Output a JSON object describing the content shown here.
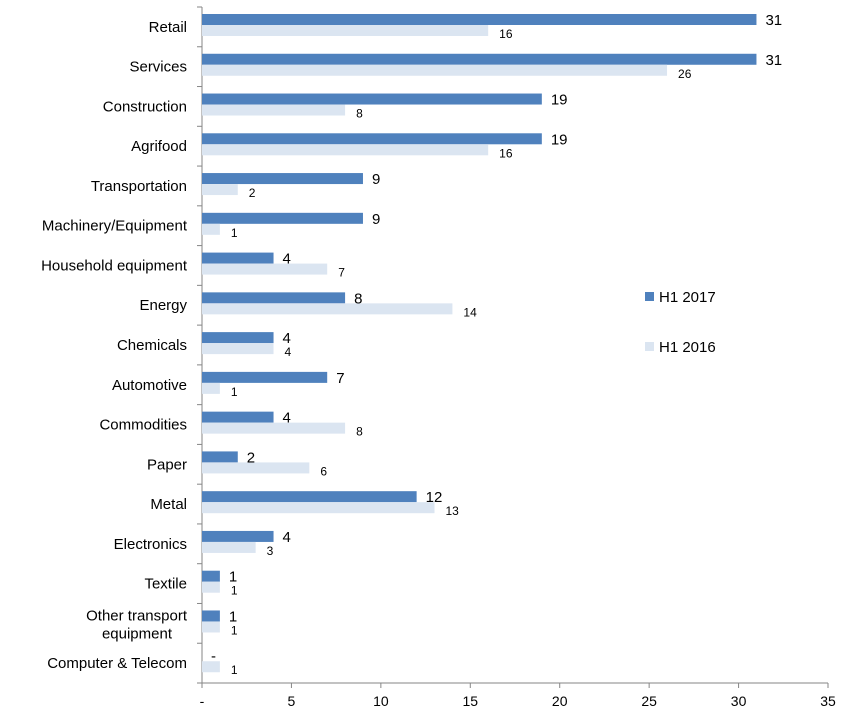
{
  "chart_data": {
    "type": "bar",
    "orientation": "horizontal",
    "categories": [
      "Retail",
      "Services",
      "Construction",
      "Agrifood",
      "Transportation",
      "Machinery/Equipment",
      "Household equipment",
      "Energy",
      "Chemicals",
      "Automotive",
      "Commodities",
      "Paper",
      "Metal",
      "Electronics",
      "Textile",
      "Other transport equipment",
      "Computer & Telecom"
    ],
    "series": [
      {
        "name": "H1 2017",
        "color": "#4f81bd",
        "values": [
          31,
          31,
          19,
          19,
          9,
          9,
          4,
          8,
          4,
          7,
          4,
          2,
          12,
          4,
          1,
          1,
          0
        ],
        "labels": [
          "31",
          "31",
          "19",
          "19",
          "9",
          "9",
          "4",
          "8",
          "4",
          "7",
          "4",
          "2",
          "12",
          "4",
          "1",
          "1",
          "-"
        ]
      },
      {
        "name": "H1 2016",
        "color": "#dbe5f1",
        "values": [
          16,
          26,
          8,
          16,
          2,
          1,
          7,
          14,
          4,
          1,
          8,
          6,
          13,
          3,
          1,
          1,
          1
        ],
        "labels": [
          "16",
          "26",
          "8",
          "16",
          "2",
          "1",
          "7",
          "14",
          "4",
          "1",
          "8",
          "6",
          "13",
          "3",
          "1",
          "1",
          "1"
        ]
      }
    ],
    "xlim": [
      0,
      35
    ],
    "xticks": [
      0,
      5,
      10,
      15,
      20,
      25,
      30,
      35
    ],
    "xtick_labels": [
      "-",
      "5",
      "10",
      "15",
      "20",
      "25",
      "30",
      "35"
    ],
    "grid": false,
    "legend_position": "right"
  }
}
